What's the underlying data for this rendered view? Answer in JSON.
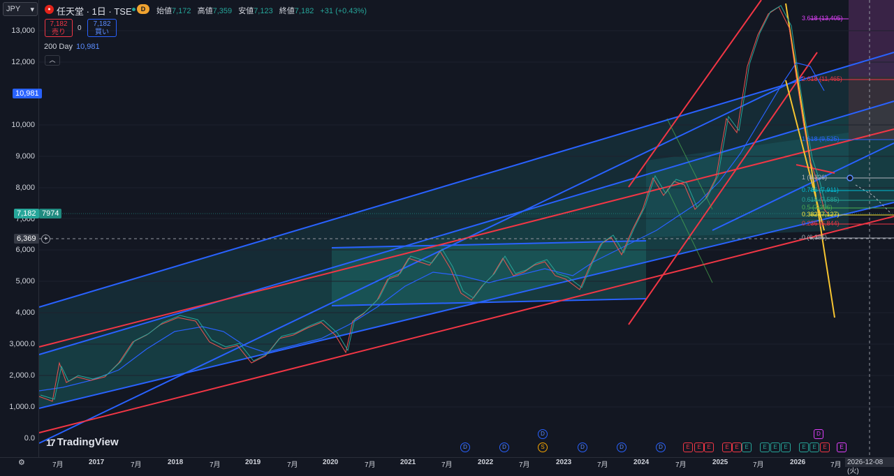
{
  "header": {
    "currency": "JPY",
    "title": "任天堂 · 1日 · TSE",
    "delay_badge": "D",
    "ohlc": [
      {
        "label": "始値",
        "value": "7,172"
      },
      {
        "label": "高値",
        "value": "7,359"
      },
      {
        "label": "安値",
        "value": "7,123"
      },
      {
        "label": "終値",
        "value": "7,182"
      }
    ],
    "change": "+31 (+0.43%)"
  },
  "trade": {
    "sell_price": "7,182",
    "sell_label": "売り",
    "spread": "0",
    "buy_price": "7,182",
    "buy_label": "買い"
  },
  "indicator": {
    "name": "200 Day",
    "value": "10,981"
  },
  "y_axis": {
    "ticks": [
      "13,000",
      "12,000",
      "10,000",
      "9,000",
      "8,000",
      "7,000",
      "6,000",
      "5,000",
      "4,000",
      "3,000.0",
      "2,000.0",
      "1,000.0",
      "0.0"
    ],
    "ma_badge": "10,981",
    "price_badge": "7,182",
    "price_badge_countdown": "7974",
    "crosshair_badge": "6,369"
  },
  "x_axis": {
    "labels": [
      "7月",
      "2017",
      "7月",
      "2018",
      "7月",
      "2019",
      "7月",
      "2020",
      "7月",
      "2021",
      "7月",
      "2022",
      "7月",
      "2023",
      "7月",
      "2024",
      "7月",
      "2025",
      "7月",
      "2026",
      "7月"
    ],
    "crosshair_date": "2026-12-08 (火)"
  },
  "fib_labels": [
    {
      "text": "3.618 (13,405)",
      "color": "#e040fb"
    },
    {
      "text": "2.618 (11,465)",
      "color": "#f23645"
    },
    {
      "text": "1.618 (9,525)",
      "color": "#2962ff"
    },
    {
      "text": "1 (8,326)",
      "color": "#b2b5be"
    },
    {
      "text": "0.786 (7,911)",
      "color": "#00bcd4"
    },
    {
      "text": "0.618 (7,585)",
      "color": "#26a69a"
    },
    {
      "text": "0.5 (7,356)",
      "color": "#4caf50"
    },
    {
      "text": "0.382 (7,127)",
      "color": "#ffeb3b"
    },
    {
      "text": "0.236 (6,844)",
      "color": "#f23645"
    },
    {
      "text": "0 (6,386)",
      "color": "#b2b5be"
    }
  ],
  "events": {
    "dividend": "D",
    "split": "S",
    "earnings": "E"
  },
  "branding": {
    "logo_text": "TradingView"
  },
  "colors": {
    "background": "#131722",
    "up": "#26a69a",
    "down": "#ef5350",
    "channel_blue": "#2962ff",
    "channel_red": "#f23645"
  }
}
